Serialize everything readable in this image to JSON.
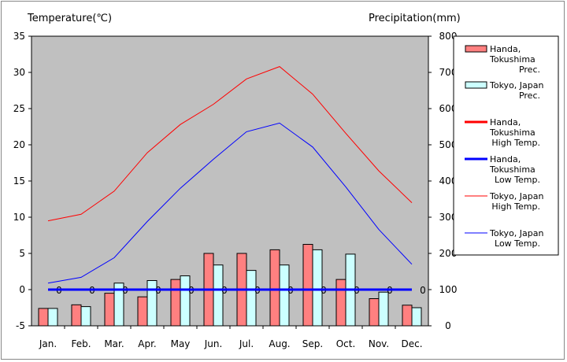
{
  "chart_data": {
    "type": "bar+line",
    "title": "",
    "left_axis_title": "Temperature(℃)",
    "right_axis_title": "Precipitation(mm)",
    "categories": [
      "Jan.",
      "Feb.",
      "Mar.",
      "Apr.",
      "May",
      "Jun.",
      "Jul.",
      "Aug.",
      "Sep.",
      "Oct.",
      "Nov.",
      "Dec."
    ],
    "temperature_axis": {
      "min": -5,
      "max": 35,
      "ticks": [
        "-5",
        "0",
        "5",
        "10",
        "15",
        "20",
        "25",
        "30",
        "35"
      ]
    },
    "precipitation_axis": {
      "min": 0,
      "max": 800,
      "ticks": [
        "0",
        "100",
        "200",
        "300",
        "400",
        "500",
        "600",
        "700",
        "800"
      ]
    },
    "grid": false,
    "plot_background": "#c0c0c0",
    "legend_position": "right",
    "bar_series": [
      {
        "name": "Handa, Tokushima Prec.",
        "legend_lines": [
          "Handa,",
          "Tokushima",
          "Prec."
        ],
        "color": "#ff8080",
        "values": [
          48,
          58,
          90,
          80,
          128,
          200,
          200,
          210,
          225,
          128,
          75,
          57
        ]
      },
      {
        "name": "Tokyo, Japan Prec.",
        "legend_lines": [
          "Tokyo, Japan",
          "Prec."
        ],
        "color": "#ccffff",
        "values": [
          48,
          53,
          118,
          125,
          138,
          168,
          153,
          168,
          210,
          198,
          93,
          50
        ]
      }
    ],
    "line_series": [
      {
        "name": "Handa, Tokushima High Temp.",
        "legend_lines": [
          "Handa,",
          "Tokushima",
          "High Temp."
        ],
        "color": "#ff0000",
        "width": 3,
        "values": [
          0,
          0,
          0,
          0,
          0,
          0,
          0,
          0,
          0,
          0,
          0,
          0
        ],
        "value_labels": [
          "0",
          "0",
          "0",
          "0",
          "0",
          "0",
          "0",
          "0",
          "0",
          "0",
          "0",
          "0"
        ]
      },
      {
        "name": "Handa, Tokushima Low Temp.",
        "legend_lines": [
          "Handa,",
          "Tokushima",
          "Low Temp."
        ],
        "color": "#0000ff",
        "width": 3,
        "values": [
          0,
          0,
          0,
          0,
          0,
          0,
          0,
          0,
          0,
          0,
          0,
          0
        ]
      },
      {
        "name": "Tokyo, Japan High Temp.",
        "legend_lines": [
          "Tokyo, Japan",
          "High Temp."
        ],
        "color": "#ff0000",
        "width": 1,
        "values": [
          9.5,
          10.4,
          13.6,
          18.9,
          22.8,
          25.6,
          29.1,
          30.8,
          27.0,
          21.6,
          16.4,
          12.0
        ]
      },
      {
        "name": "Tokyo, Japan Low Temp.",
        "legend_lines": [
          "Tokyo, Japan",
          "Low Temp."
        ],
        "color": "#0000ff",
        "width": 1,
        "values": [
          0.9,
          1.7,
          4.4,
          9.4,
          14.0,
          18.0,
          21.8,
          23.0,
          19.7,
          14.2,
          8.3,
          3.5
        ]
      }
    ]
  }
}
